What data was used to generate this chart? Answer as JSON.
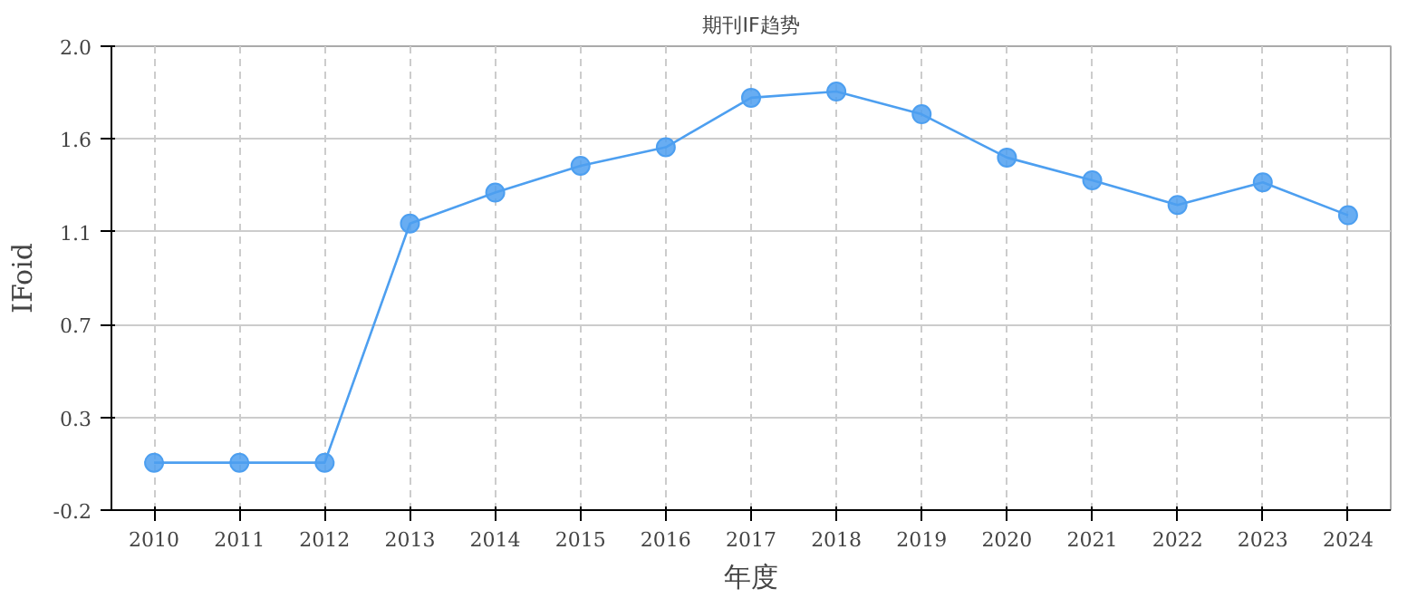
{
  "chart_data": {
    "type": "line",
    "title": "期刊IF趋势",
    "xlabel": "年度",
    "ylabel": "IFoid",
    "categories": [
      "2010",
      "2011",
      "2012",
      "2013",
      "2014",
      "2015",
      "2016",
      "2017",
      "2018",
      "2019",
      "2020",
      "2021",
      "2022",
      "2023",
      "2024"
    ],
    "series": [
      {
        "color": "#4d9ff0",
        "values": [
          0.03,
          0.03,
          0.03,
          1.19,
          1.34,
          1.47,
          1.56,
          1.8,
          1.83,
          1.72,
          1.51,
          1.4,
          1.28,
          1.39,
          1.23
        ]
      }
    ],
    "ylim": [
      -0.2,
      2.05
    ],
    "yticks": [
      -0.2,
      {
        "value": 0.25,
        "label": "0.3"
      },
      0.7,
      {
        "value": 1.15,
        "label": "1.1"
      },
      1.6,
      {
        "value": 2.05,
        "label": "2.0"
      }
    ],
    "grid": true,
    "marker": "circle",
    "line_style": "solid"
  }
}
